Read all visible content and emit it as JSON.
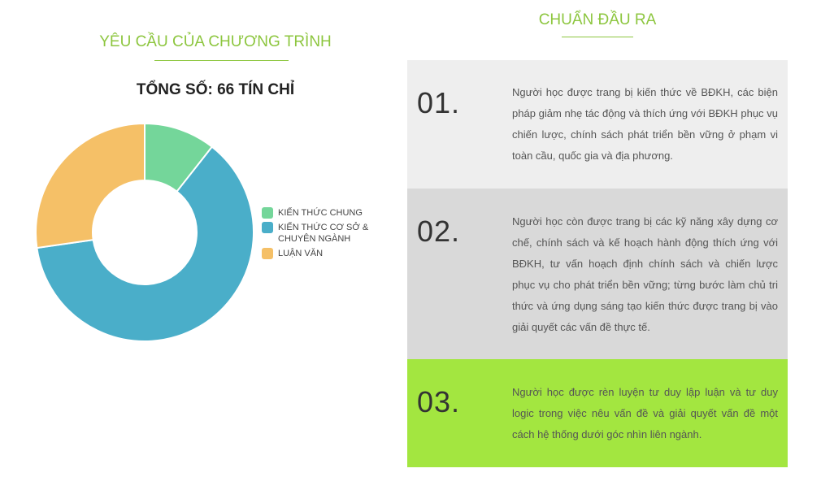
{
  "left": {
    "title": "YÊU CẦU CỦA CHƯƠNG TRÌNH",
    "total_label": "TỔNG SỐ: 66 TÍN CHỈ"
  },
  "right": {
    "title": "CHUẨN ĐẦU RA",
    "items": [
      {
        "number": "01.",
        "text": "Người học được trang bị kiến thức về BĐKH, các biện pháp giảm nhẹ tác động và thích ứng với BĐKH phục vụ chiến lược, chính sách phát triển bền vững ở phạm vi toàn cầu, quốc gia và địa phương.",
        "bg": "#eeeeee"
      },
      {
        "number": "02.",
        "text": "Người học còn được trang bị các kỹ năng xây dựng cơ chế, chính sách và kế hoạch hành động thích ứng với BĐKH, tư vấn hoạch định chính sách và chiến lược phục vụ cho phát triển bền vững; từng bước làm chủ tri thức và ứng dụng sáng tạo kiến thức được trang bị vào giải quyết các vấn đề thực tế.",
        "bg": "#d9d9d9"
      },
      {
        "number": "03.",
        "text": "Người học được rèn luyện tư duy lập luận và tư duy logic trong việc nêu vấn đề và giải quyết vấn đề một cách hệ thống dưới góc nhìn liên ngành.",
        "bg": "#a3e640"
      }
    ]
  },
  "chart_data": {
    "type": "pie",
    "categories": [
      "KIẾN THỨC CHUNG",
      "KIẾN THỨC CƠ SỞ & CHUYÊN NGÀNH",
      "LUẬN VĂN"
    ],
    "values": [
      7,
      41,
      18
    ],
    "colors": [
      "#74d69a",
      "#4aaec9",
      "#f5c067"
    ],
    "donut": true
  }
}
